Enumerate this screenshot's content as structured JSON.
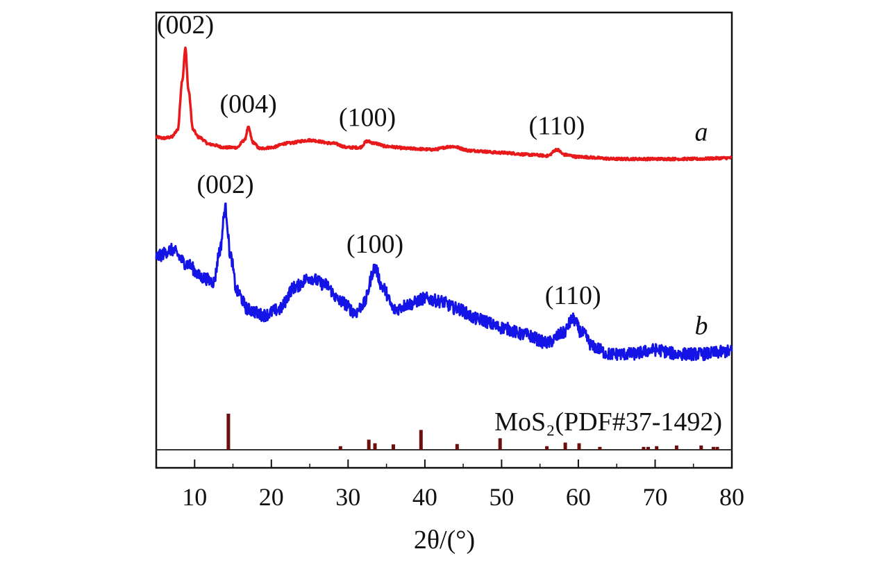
{
  "chart_data": {
    "type": "line",
    "title": "",
    "xlabel": "2θ/(°)",
    "ylabel": "",
    "xlim": [
      5,
      80
    ],
    "xticks": [
      10,
      20,
      30,
      40,
      50,
      60,
      70,
      80
    ],
    "y_ticks_shown": false,
    "grid": false,
    "series": [
      {
        "name": "a",
        "color": "#e8191b",
        "anchors": [
          [
            5,
            0.15
          ],
          [
            6,
            0.14
          ],
          [
            7,
            0.15
          ],
          [
            7.8,
            0.22
          ],
          [
            8.4,
            0.7
          ],
          [
            8.8,
            1.0
          ],
          [
            9.2,
            0.6
          ],
          [
            9.8,
            0.22
          ],
          [
            10.5,
            0.15
          ],
          [
            12,
            0.08
          ],
          [
            14,
            0.05
          ],
          [
            15.5,
            0.05
          ],
          [
            16.5,
            0.12
          ],
          [
            17.0,
            0.24
          ],
          [
            17.6,
            0.1
          ],
          [
            18.5,
            0.04
          ],
          [
            20,
            0.05
          ],
          [
            22,
            0.09
          ],
          [
            25,
            0.12
          ],
          [
            28,
            0.09
          ],
          [
            30,
            0.05
          ],
          [
            31.5,
            0.05
          ],
          [
            32.5,
            0.11
          ],
          [
            33.5,
            0.09
          ],
          [
            35,
            0.06
          ],
          [
            38,
            0.04
          ],
          [
            41,
            0.03
          ],
          [
            43.5,
            0.06
          ],
          [
            46,
            0.02
          ],
          [
            50,
            0.0
          ],
          [
            54,
            -0.02
          ],
          [
            56,
            -0.03
          ],
          [
            57.2,
            0.03
          ],
          [
            58.2,
            -0.02
          ],
          [
            60,
            -0.04
          ],
          [
            65,
            -0.06
          ],
          [
            70,
            -0.06
          ],
          [
            75,
            -0.06
          ],
          [
            80,
            -0.05
          ]
        ],
        "peaks": [
          {
            "label": "(002)",
            "x": 8.8
          },
          {
            "label": "(004)",
            "x": 17.0
          },
          {
            "label": "(100)",
            "x": 32.5
          },
          {
            "label": "(110)",
            "x": 57.2
          }
        ]
      },
      {
        "name": "b",
        "color": "#1414e6",
        "anchors": [
          [
            5,
            0.5
          ],
          [
            7,
            0.55
          ],
          [
            9,
            0.45
          ],
          [
            11,
            0.35
          ],
          [
            12.5,
            0.32
          ],
          [
            13.3,
            0.55
          ],
          [
            14.0,
            0.85
          ],
          [
            14.7,
            0.5
          ],
          [
            15.5,
            0.25
          ],
          [
            17,
            0.12
          ],
          [
            19,
            0.08
          ],
          [
            21,
            0.12
          ],
          [
            23,
            0.28
          ],
          [
            25,
            0.35
          ],
          [
            27,
            0.3
          ],
          [
            29,
            0.18
          ],
          [
            31,
            0.1
          ],
          [
            32,
            0.16
          ],
          [
            33.5,
            0.42
          ],
          [
            34.5,
            0.28
          ],
          [
            36,
            0.12
          ],
          [
            38,
            0.16
          ],
          [
            40,
            0.2
          ],
          [
            42,
            0.18
          ],
          [
            44,
            0.13
          ],
          [
            47,
            0.05
          ],
          [
            50,
            -0.01
          ],
          [
            53,
            -0.06
          ],
          [
            56,
            -0.12
          ],
          [
            58,
            -0.05
          ],
          [
            59.3,
            0.05
          ],
          [
            60.5,
            -0.05
          ],
          [
            62,
            -0.15
          ],
          [
            64,
            -0.2
          ],
          [
            67,
            -0.2
          ],
          [
            70,
            -0.17
          ],
          [
            73,
            -0.2
          ],
          [
            76,
            -0.2
          ],
          [
            80,
            -0.18
          ]
        ],
        "peaks": [
          {
            "label": "(002)",
            "x": 14.0
          },
          {
            "label": "(100)",
            "x": 33.5
          },
          {
            "label": "(110)",
            "x": 59.3
          }
        ]
      }
    ],
    "reference": {
      "label": "MoS₂(PDF#37-1492)",
      "color": "#6b0f0f",
      "lines": [
        [
          14.4,
          100
        ],
        [
          29.0,
          10
        ],
        [
          32.7,
          28
        ],
        [
          33.5,
          18
        ],
        [
          35.9,
          15
        ],
        [
          39.5,
          55
        ],
        [
          44.2,
          16
        ],
        [
          49.8,
          32
        ],
        [
          55.9,
          10
        ],
        [
          58.3,
          20
        ],
        [
          60.1,
          18
        ],
        [
          62.8,
          8
        ],
        [
          68.5,
          8
        ],
        [
          69.1,
          8
        ],
        [
          70.2,
          10
        ],
        [
          72.8,
          12
        ],
        [
          76.0,
          12
        ],
        [
          77.6,
          8
        ],
        [
          78.1,
          8
        ]
      ]
    }
  }
}
